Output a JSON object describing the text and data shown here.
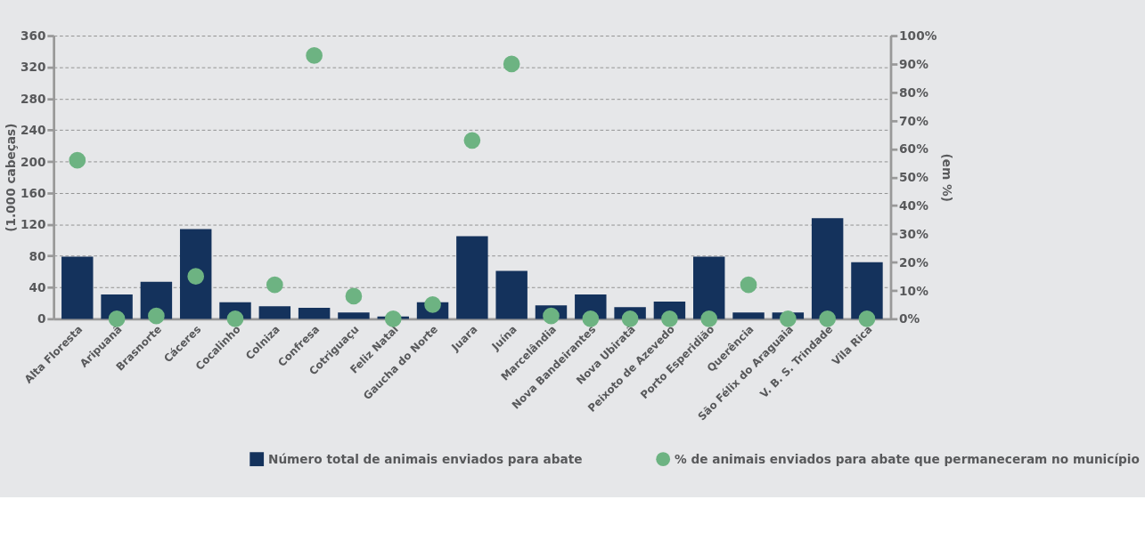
{
  "chart_data": {
    "type": "bar",
    "ylabel": "(1.000 cabeças)",
    "y2label": "(em %)",
    "categories": [
      "Alta Floresta",
      "Aripuanã",
      "Brasnorte",
      "Cáceres",
      "Cocalinho",
      "Colniza",
      "Confresa",
      "Cotriguaçu",
      "Feliz Natal",
      "Gaucha do Norte",
      "Juara",
      "Juína",
      "Marcelândia",
      "Nova Bandeirantes",
      "Nova Ubiratã",
      "Peixoto de Azevedo",
      "Porto Esperidião",
      "Querência",
      "São Félix do Araguaia",
      "V. B. S. Trindade",
      "Vila Rica"
    ],
    "series": [
      {
        "name": "Número total de animais enviados para abate",
        "color": "#14325c",
        "values": [
          79,
          31,
          47,
          114,
          21,
          16,
          14,
          8,
          3,
          21,
          105,
          61,
          17,
          31,
          15,
          22,
          79,
          8,
          8,
          128,
          72
        ]
      },
      {
        "name": "% de animais enviados para abate que permaneceram no município",
        "type": "scatter",
        "axis": "y2",
        "color": "#6db382",
        "values": [
          56,
          0,
          1,
          15,
          0,
          12,
          93,
          8,
          0,
          5,
          63,
          90,
          1,
          0,
          0,
          0,
          0,
          12,
          0,
          0,
          0
        ]
      }
    ],
    "ylim": [
      0,
      360
    ],
    "yticks": [
      0,
      40,
      80,
      120,
      160,
      200,
      240,
      280,
      320,
      360
    ],
    "y2lim": [
      0,
      100
    ],
    "y2ticks": [
      {
        "value": 0,
        "label": "0%"
      },
      {
        "value": 10,
        "label": "10%"
      },
      {
        "value": 20,
        "label": "20%"
      },
      {
        "value": 30,
        "label": "30%"
      },
      {
        "value": 40,
        "label": "40%"
      },
      {
        "value": 50,
        "label": "50%"
      },
      {
        "value": 60,
        "label": "60%"
      },
      {
        "value": 70,
        "label": "70%"
      },
      {
        "value": 80,
        "label": "80%"
      },
      {
        "value": 90,
        "label": "90%"
      },
      {
        "value": 100,
        "label": "100%"
      }
    ],
    "grid": "y",
    "legend": "bottom",
    "marker": "circle"
  }
}
